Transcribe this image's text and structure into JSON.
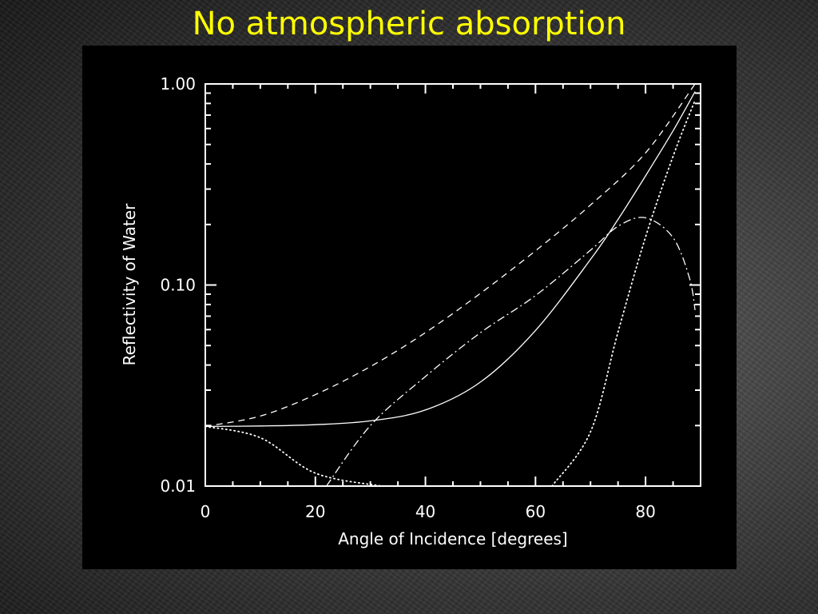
{
  "slide": {
    "title": "No atmospheric absorption"
  },
  "chart_data": {
    "type": "line",
    "xlabel": "Angle of Incidence [degrees]",
    "ylabel": "Reflectivity of Water",
    "xlim": [
      0,
      90
    ],
    "ylim": [
      0.01,
      1.0
    ],
    "yscale": "log",
    "grid": false,
    "x_ticks": [
      "0",
      "20",
      "40",
      "60",
      "80"
    ],
    "y_ticks": [
      "0.01",
      "0.10",
      "1.00"
    ],
    "series": [
      {
        "style": "solid",
        "x": [
          0,
          10,
          20,
          30,
          40,
          50,
          60,
          70,
          75,
          80,
          85,
          89
        ],
        "y": [
          0.0198,
          0.0199,
          0.0202,
          0.0211,
          0.0239,
          0.0329,
          0.0594,
          0.134,
          0.212,
          0.349,
          0.585,
          0.916
        ]
      },
      {
        "style": "dashed",
        "x": [
          0,
          10,
          20,
          30,
          40,
          50,
          60,
          70,
          80,
          89
        ],
        "y": [
          0.0198,
          0.0223,
          0.0285,
          0.0393,
          0.058,
          0.0909,
          0.148,
          0.25,
          0.454,
          1.0
        ]
      },
      {
        "style": "dotted",
        "x": [
          0,
          10,
          20,
          32
        ],
        "y": [
          0.0198,
          0.0174,
          0.0116,
          0.01
        ]
      },
      {
        "style": "dotted",
        "x": [
          63,
          70,
          75,
          80,
          85,
          89
        ],
        "y": [
          0.01,
          0.0186,
          0.0584,
          0.173,
          0.437,
          0.83
        ]
      },
      {
        "style": "dashdot",
        "x": [
          22,
          30,
          40,
          50,
          60,
          70,
          75,
          80,
          85,
          88,
          89
        ],
        "y": [
          0.01,
          0.02,
          0.0351,
          0.0579,
          0.0886,
          0.149,
          0.196,
          0.216,
          0.172,
          0.108,
          0.075
        ]
      }
    ]
  }
}
